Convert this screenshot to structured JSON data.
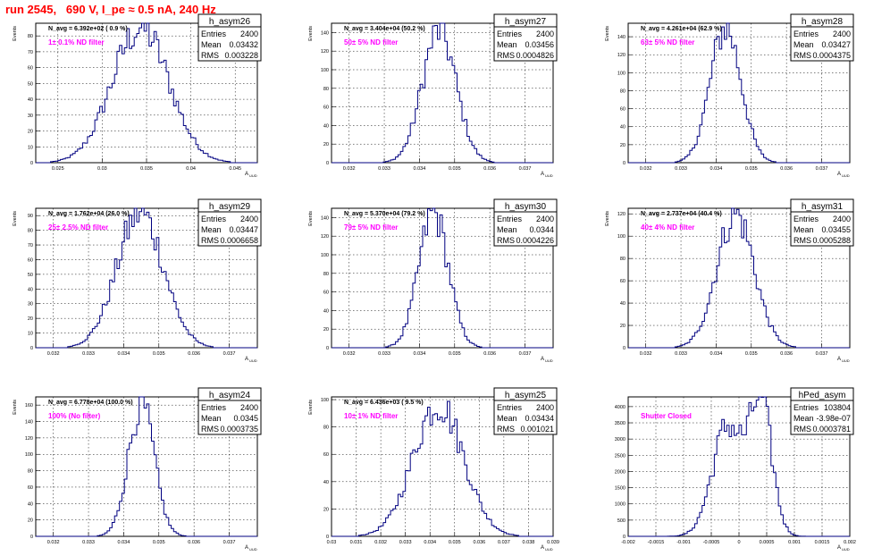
{
  "page_title": "run 2545,   690 V, I_pe ≈ 0.5 nA, 240 Hz",
  "stats_labels": {
    "entries": "Entries",
    "mean": "Mean",
    "rms": "RMS"
  },
  "colors": {
    "histogram": "#000080",
    "annotation": "#ff00ff",
    "title": "#ff0000",
    "grid": "#000000"
  },
  "chart_data": [
    {
      "type": "histogram",
      "name": "h_asym26",
      "navg": "N_avg = 6.392e+02 ( 0.9 %)",
      "label": "1± 0.1% ND filter",
      "entries": "2400",
      "mean": "0.03432",
      "rms": "0.003228",
      "xlabel": "",
      "ylabel": "Events",
      "xlim": [
        0.0225,
        0.0475
      ],
      "ylim": [
        0,
        88
      ],
      "xticks": [
        0.025,
        0.03,
        0.035,
        0.04,
        0.045
      ],
      "xticklabels": [
        "0.025",
        "0.03",
        "0.035",
        "0.04",
        "0.045"
      ],
      "yticks": [
        0,
        10,
        20,
        30,
        40,
        50,
        60,
        70,
        80
      ],
      "yticklabels": [
        "0",
        "10",
        "20",
        "30",
        "40",
        "50",
        "60",
        "70",
        "80"
      ],
      "peak": 85,
      "mu": 0.03432,
      "sigma": 0.0032
    },
    {
      "type": "histogram",
      "name": "h_asym27",
      "navg": "N_avg = 3.404e+04 (50.2 %)",
      "label": "50± 5% ND filter",
      "entries": "2400",
      "mean": "0.03456",
      "rms": "0.0004826",
      "xlabel": "",
      "ylabel": "Events",
      "xlim": [
        0.0315,
        0.0378
      ],
      "ylim": [
        0,
        150
      ],
      "xticks": [
        0.032,
        0.033,
        0.034,
        0.035,
        0.036,
        0.037
      ],
      "xticklabels": [
        "0.032",
        "0.033",
        "0.034",
        "0.035",
        "0.036",
        "0.037"
      ],
      "yticks": [
        0,
        20,
        40,
        60,
        80,
        100,
        120,
        140
      ],
      "yticklabels": [
        "0",
        "20",
        "40",
        "60",
        "80",
        "100",
        "120",
        "140"
      ],
      "peak": 142,
      "mu": 0.03456,
      "sigma": 0.00048
    },
    {
      "type": "histogram",
      "name": "h_asym28",
      "navg": "N_avg = 4.261e+04 (62.9 %)",
      "label": "63± 5% ND filter",
      "entries": "2400",
      "mean": "0.03427",
      "rms": "0.0004375",
      "xlabel": "",
      "ylabel": "Events",
      "xlim": [
        0.0315,
        0.0378
      ],
      "ylim": [
        0,
        155
      ],
      "xticks": [
        0.032,
        0.033,
        0.034,
        0.035,
        0.036,
        0.037
      ],
      "xticklabels": [
        "0.032",
        "0.033",
        "0.034",
        "0.035",
        "0.036",
        "0.037"
      ],
      "yticks": [
        0,
        20,
        40,
        60,
        80,
        100,
        120,
        140
      ],
      "yticklabels": [
        "0",
        "20",
        "40",
        "60",
        "80",
        "100",
        "120",
        "140"
      ],
      "peak": 150,
      "mu": 0.03427,
      "sigma": 0.00044
    },
    {
      "type": "histogram",
      "name": "h_asym29",
      "navg": "N_avg = 1.762e+04 (26.0 %)",
      "label": "25± 2.5% ND filter",
      "entries": "2400",
      "mean": "0.03447",
      "rms": "0.0006658",
      "xlabel": "",
      "ylabel": "Events",
      "xlim": [
        0.0315,
        0.0378
      ],
      "ylim": [
        0,
        95
      ],
      "xticks": [
        0.032,
        0.033,
        0.034,
        0.035,
        0.036,
        0.037
      ],
      "xticklabels": [
        "0.032",
        "0.033",
        "0.034",
        "0.035",
        "0.036",
        "0.037"
      ],
      "yticks": [
        0,
        10,
        20,
        30,
        40,
        50,
        60,
        70,
        80,
        90
      ],
      "yticklabels": [
        "0",
        "10",
        "20",
        "30",
        "40",
        "50",
        "60",
        "70",
        "80",
        "90"
      ],
      "peak": 92,
      "mu": 0.03447,
      "sigma": 0.00066
    },
    {
      "type": "histogram",
      "name": "h_asym30",
      "navg": "N_avg = 5.370e+04 (79.2 %)",
      "label": "79± 5% ND filter",
      "entries": "2400",
      "mean": "0.0344",
      "rms": "0.0004226",
      "xlabel": "",
      "ylabel": "Events",
      "xlim": [
        0.0315,
        0.0378
      ],
      "ylim": [
        0,
        150
      ],
      "xticks": [
        0.032,
        0.033,
        0.034,
        0.035,
        0.036,
        0.037
      ],
      "xticklabels": [
        "0.032",
        "0.033",
        "0.034",
        "0.035",
        "0.036",
        "0.037"
      ],
      "yticks": [
        0,
        20,
        40,
        60,
        80,
        100,
        120,
        140
      ],
      "yticklabels": [
        "0",
        "20",
        "40",
        "60",
        "80",
        "100",
        "120",
        "140"
      ],
      "peak": 145,
      "mu": 0.0344,
      "sigma": 0.00042
    },
    {
      "type": "histogram",
      "name": "h_asym31",
      "navg": "N_avg = 2.737e+04 (40.4 %)",
      "label": "40± 4% ND filter",
      "entries": "2400",
      "mean": "0.03455",
      "rms": "0.0005288",
      "xlabel": "",
      "ylabel": "Events",
      "xlim": [
        0.0315,
        0.0378
      ],
      "ylim": [
        0,
        125
      ],
      "xticks": [
        0.032,
        0.033,
        0.034,
        0.035,
        0.036,
        0.037
      ],
      "xticklabels": [
        "0.032",
        "0.033",
        "0.034",
        "0.035",
        "0.036",
        "0.037"
      ],
      "yticks": [
        0,
        20,
        40,
        60,
        80,
        100,
        120
      ],
      "yticklabels": [
        "0",
        "20",
        "40",
        "60",
        "80",
        "100",
        "120"
      ],
      "peak": 120,
      "mu": 0.03455,
      "sigma": 0.00053
    },
    {
      "type": "histogram",
      "name": "h_asym24",
      "navg": "N_avg = 6.778e+04 (100.0 %)",
      "label": "100% (No filter)",
      "entries": "2400",
      "mean": "0.0345",
      "rms": "0.0003735",
      "xlabel": "",
      "ylabel": "Events",
      "xlim": [
        0.0315,
        0.0378
      ],
      "ylim": [
        0,
        170
      ],
      "xticks": [
        0.032,
        0.033,
        0.034,
        0.035,
        0.036,
        0.037
      ],
      "xticklabels": [
        "0.032",
        "0.033",
        "0.034",
        "0.035",
        "0.036",
        "0.037"
      ],
      "yticks": [
        0,
        20,
        40,
        60,
        80,
        100,
        120,
        140,
        160
      ],
      "yticklabels": [
        "0",
        "20",
        "40",
        "60",
        "80",
        "100",
        "120",
        "140",
        "160"
      ],
      "peak": 160,
      "mu": 0.0345,
      "sigma": 0.00037
    },
    {
      "type": "histogram",
      "name": "h_asym25",
      "navg": "N_avg = 6.436e+03 ( 9.5 %)",
      "label": "10± 1% ND filter",
      "entries": "2400",
      "mean": "0.03434",
      "rms": "0.001021",
      "xlabel": "",
      "ylabel": "Events",
      "xlim": [
        0.03,
        0.039
      ],
      "ylim": [
        0,
        102
      ],
      "xticks": [
        0.03,
        0.031,
        0.032,
        0.033,
        0.034,
        0.035,
        0.036,
        0.037,
        0.038,
        0.039
      ],
      "xticklabels": [
        "0.03",
        "0.031",
        "0.032",
        "0.033",
        "0.034",
        "0.035",
        "0.036",
        "0.037",
        "0.038",
        "0.039"
      ],
      "yticks": [
        0,
        20,
        40,
        60,
        80,
        100
      ],
      "yticklabels": [
        "0",
        "20",
        "40",
        "60",
        "80",
        "100"
      ],
      "peak": 97,
      "mu": 0.03434,
      "sigma": 0.00102
    },
    {
      "type": "histogram",
      "name": "hPed_asym",
      "navg": "",
      "label": "Shutter Closed",
      "entries": "103804",
      "mean": "-3.98e-07",
      "rms": "0.0003781",
      "xlabel": "",
      "ylabel": "",
      "xlim": [
        -0.002,
        0.002
      ],
      "ylim": [
        0,
        4300
      ],
      "xticks": [
        -0.002,
        -0.0015,
        -0.001,
        -0.0005,
        0,
        0.0005,
        0.001,
        0.0015,
        0.002
      ],
      "xticklabels": [
        "-0.002",
        "-0.0015",
        "-0.001",
        "-0.0005",
        "0",
        "0.0005",
        "0.001",
        "0.0015",
        "0.002"
      ],
      "yticks": [
        0,
        500,
        1000,
        1500,
        2000,
        2500,
        3000,
        3500,
        4000
      ],
      "yticklabels": [
        "0",
        "500",
        "1000",
        "1500",
        "2000",
        "2500",
        "3000",
        "3500",
        "4000"
      ],
      "bimodal": [
        {
          "mu": -0.0002,
          "sigma": 0.00028,
          "peak": 3400
        },
        {
          "mu": 0.0004,
          "sigma": 0.0002,
          "peak": 3950
        }
      ]
    }
  ]
}
